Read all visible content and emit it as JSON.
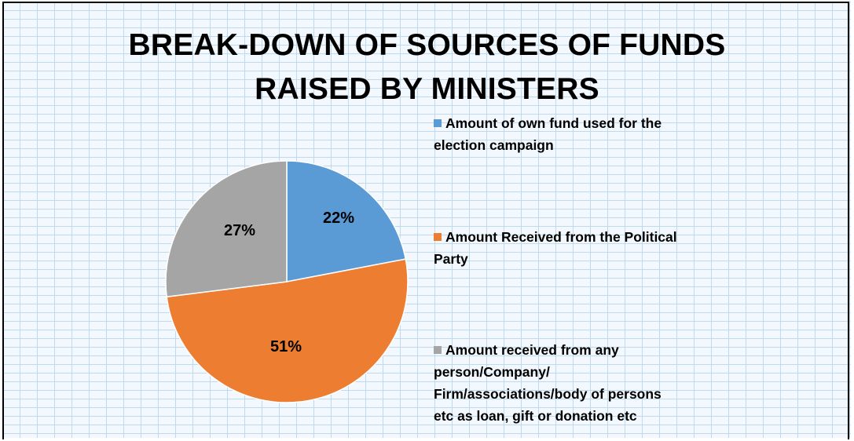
{
  "chart_data": {
    "type": "pie",
    "title": "BREAK-DOWN OF SOURCES OF FUNDS RAISED BY MINISTERS",
    "title_lines": [
      "BREAK-DOWN OF SOURCES OF FUNDS",
      "RAISED BY MINISTERS"
    ],
    "slices": [
      {
        "label": "Amount of own fund used for the election campaign",
        "legend_lines": [
          "Amount of own fund used for the",
          "election campaign"
        ],
        "value": 22,
        "data_label": "22%",
        "color": "#5b9bd5"
      },
      {
        "label": "Amount Received from the Political Party",
        "legend_lines": [
          "Amount Received from the Political",
          "Party"
        ],
        "value": 51,
        "data_label": "51%",
        "color": "#ed7d31"
      },
      {
        "label": "Amount received from any person/Company/ Firm/associations/body of persons etc as loan, gift or donation etc",
        "legend_lines": [
          "Amount received from any",
          "person/Company/",
          "Firm/associations/body of persons",
          "etc as loan, gift or donation etc"
        ],
        "value": 27,
        "data_label": "27%",
        "color": "#a5a5a5"
      }
    ],
    "legend_position": "right",
    "background": "light blue brick pattern"
  }
}
